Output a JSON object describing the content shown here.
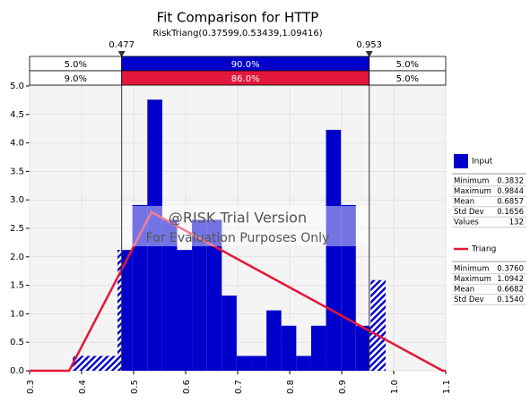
{
  "chart_data": {
    "type": "histogram",
    "title": "Fit Comparison for HTTP",
    "subtitle": "RiskTriang(0.37599,0.53439,1.09416)",
    "watermark": [
      "@RISK Trial Version",
      "For Evaluation Purposes Only"
    ],
    "xlim": [
      0.3,
      1.1
    ],
    "ylim": [
      0,
      5
    ],
    "xticks": [
      {
        "value": 0.3,
        "label": "0.3"
      },
      {
        "value": 0.4,
        "label": "0.4"
      },
      {
        "value": 0.5,
        "label": "0.5"
      },
      {
        "value": 0.6,
        "label": "0.6"
      },
      {
        "value": 0.7,
        "label": "0.7"
      },
      {
        "value": 0.8,
        "label": "0.8"
      },
      {
        "value": 0.9,
        "label": "0.9"
      },
      {
        "value": 1.0,
        "label": "1.0"
      },
      {
        "value": 1.1,
        "label": "1.1"
      }
    ],
    "yticks": [
      {
        "value": 0,
        "label": "0.0"
      },
      {
        "value": 0.5,
        "label": "0.5"
      },
      {
        "value": 1,
        "label": "1.0"
      },
      {
        "value": 1.5,
        "label": "1.5"
      },
      {
        "value": 2,
        "label": "2.0"
      },
      {
        "value": 2.5,
        "label": "2.5"
      },
      {
        "value": 3,
        "label": "3.0"
      },
      {
        "value": 3.5,
        "label": "3.5"
      },
      {
        "value": 4,
        "label": "4.0"
      },
      {
        "value": 4.5,
        "label": "4.5"
      },
      {
        "value": 5,
        "label": "5.0"
      }
    ],
    "grid": true,
    "delimiters": [
      0.477,
      0.953
    ],
    "bands": [
      {
        "color": "#0000cc",
        "values": [
          5,
          90,
          5
        ],
        "value_labels": [
          "5.0%",
          "90.0%",
          "5.0%"
        ]
      },
      {
        "color": "#e3173c",
        "values": [
          9,
          86,
          5
        ],
        "value_labels": [
          "9.0%",
          "86.0%",
          "5.0%"
        ]
      }
    ],
    "series": [
      {
        "name": "Input",
        "color": "#0000cc",
        "bins": [
          0.3832,
          0.4118,
          0.4405,
          0.4691,
          0.4977,
          0.5264,
          0.555,
          0.5836,
          0.6122,
          0.6409,
          0.6695,
          0.6981,
          0.7268,
          0.7554,
          0.784,
          0.8127,
          0.8413,
          0.8699,
          0.8986,
          0.9272,
          0.9558,
          0.9844
        ],
        "values": [
          0.26,
          0.26,
          0.26,
          2.12,
          2.91,
          4.76,
          2.65,
          2.12,
          2.65,
          2.65,
          1.32,
          0.26,
          0.26,
          1.06,
          0.79,
          0.26,
          0.79,
          4.23,
          2.91,
          0.79,
          1.59
        ],
        "stats": [
          [
            "Minimum",
            "0.3832"
          ],
          [
            "Maximum",
            "0.9844"
          ],
          [
            "Mean",
            "0.6857"
          ],
          [
            "Std Dev",
            "0.1656"
          ],
          [
            "Values",
            "132"
          ]
        ]
      },
      {
        "name": "Triang",
        "color": "#e3173c",
        "x": [
          0.3,
          0.37599,
          0.53439,
          1.09416,
          1.1
        ],
        "values": [
          0,
          0,
          2.785,
          0,
          0
        ],
        "stats": [
          [
            "Minimum",
            "0.3760"
          ],
          [
            "Maximum",
            "1.0942"
          ],
          [
            "Mean",
            "0.6682"
          ],
          [
            "Std Dev",
            "0.1540"
          ]
        ]
      }
    ]
  }
}
